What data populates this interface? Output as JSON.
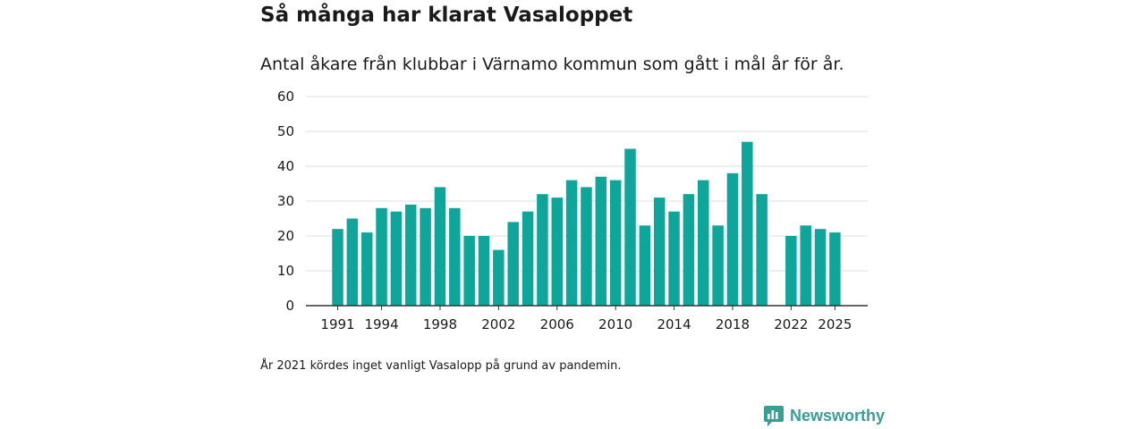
{
  "chart_data": {
    "type": "bar",
    "title": "Så många har klarat Vasaloppet",
    "subtitle": "Antal åkare från klubbar i Värnamo kommun som gått i mål år för år.",
    "x": [
      1991,
      1992,
      1993,
      1994,
      1995,
      1996,
      1997,
      1998,
      1999,
      2000,
      2001,
      2002,
      2003,
      2004,
      2005,
      2006,
      2007,
      2008,
      2009,
      2010,
      2011,
      2012,
      2013,
      2014,
      2015,
      2016,
      2017,
      2018,
      2019,
      2020,
      2021,
      2022,
      2023,
      2024,
      2025
    ],
    "values": [
      22,
      25,
      21,
      28,
      27,
      29,
      28,
      34,
      28,
      20,
      20,
      16,
      24,
      27,
      32,
      31,
      36,
      34,
      37,
      36,
      45,
      23,
      31,
      27,
      32,
      36,
      23,
      38,
      47,
      32,
      null,
      20,
      23,
      22,
      21
    ],
    "x_tick_labels": [
      "1991",
      "1994",
      "1998",
      "2002",
      "2006",
      "2010",
      "2014",
      "2018",
      "2022",
      "2025"
    ],
    "y_tick_labels": [
      "0",
      "10",
      "20",
      "30",
      "40",
      "50",
      "60"
    ],
    "ylim": [
      0,
      60
    ],
    "xlabel": "",
    "ylabel": "",
    "bar_color": "#0ea59a",
    "grid": true
  },
  "footnote": "År 2021 kördes inget vanligt Vasalopp på grund av pandemin.",
  "brand": {
    "name": "Newsworthy",
    "icon": "newsworthy-logo-icon",
    "color": "#3a9e93"
  }
}
